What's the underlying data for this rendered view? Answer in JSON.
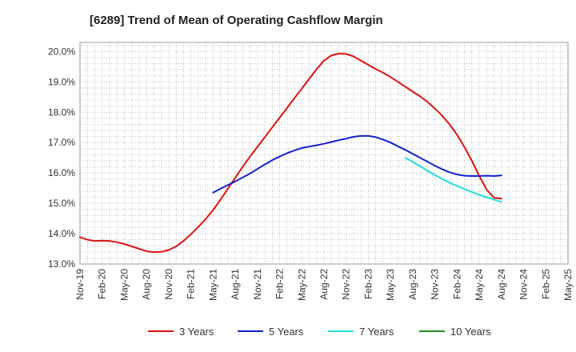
{
  "chart_data": {
    "type": "line",
    "title": "[6289]  Trend of Mean of Operating Cashflow Margin",
    "xlabel": "",
    "ylabel": "",
    "ylim": [
      13.0,
      20.3
    ],
    "y_ticks": [
      13.0,
      14.0,
      15.0,
      16.0,
      17.0,
      18.0,
      19.0,
      20.0
    ],
    "y_tick_labels": [
      "13.0%",
      "14.0%",
      "15.0%",
      "16.0%",
      "17.0%",
      "18.0%",
      "19.0%",
      "20.0%"
    ],
    "x_tick_labels": [
      "Nov-19",
      "Feb-20",
      "May-20",
      "Aug-20",
      "Nov-20",
      "Feb-21",
      "May-21",
      "Aug-21",
      "Nov-21",
      "Feb-22",
      "May-22",
      "Aug-22",
      "Nov-22",
      "Feb-23",
      "May-23",
      "Aug-23",
      "Nov-23",
      "Feb-24",
      "May-24",
      "Aug-24",
      "Nov-24",
      "Feb-25",
      "May-25"
    ],
    "grid": true,
    "legend_position": "bottom",
    "series": [
      {
        "name": "3 Years",
        "color": "#dd1111",
        "x": [
          0,
          1,
          2,
          3,
          4,
          5,
          6,
          7,
          8,
          9,
          10,
          11,
          12,
          13,
          14,
          15,
          16,
          17,
          18,
          19,
          20,
          21,
          22,
          23,
          24,
          25,
          26,
          27,
          28,
          29,
          30,
          31,
          32,
          33,
          34,
          35,
          36,
          37,
          38,
          39,
          40,
          41,
          42,
          43,
          44,
          45,
          46,
          47,
          48,
          49,
          50,
          51,
          52,
          53,
          54,
          55,
          56,
          57
        ],
        "values": [
          13.88,
          13.8,
          13.76,
          13.77,
          13.76,
          13.72,
          13.66,
          13.58,
          13.5,
          13.42,
          13.39,
          13.4,
          13.46,
          13.58,
          13.76,
          13.98,
          14.22,
          14.48,
          14.78,
          15.12,
          15.48,
          15.84,
          16.2,
          16.54,
          16.86,
          17.18,
          17.5,
          17.82,
          18.14,
          18.46,
          18.78,
          19.1,
          19.42,
          19.7,
          19.87,
          19.93,
          19.92,
          19.84,
          19.7,
          19.56,
          19.42,
          19.3,
          19.16,
          19.0,
          18.84,
          18.68,
          18.52,
          18.34,
          18.12,
          17.88,
          17.6,
          17.25,
          16.85,
          16.4,
          15.9,
          15.45,
          15.18,
          15.15
        ],
        "x_end": 57
      },
      {
        "name": "5 Years",
        "color": "#1122cc",
        "x": [
          18,
          19,
          20,
          21,
          22,
          23,
          24,
          25,
          26,
          27,
          28,
          29,
          30,
          31,
          32,
          33,
          34,
          35,
          36,
          37,
          38,
          39,
          40,
          41,
          42,
          43,
          44,
          45,
          46,
          47,
          48,
          49,
          50,
          51,
          52,
          53,
          54,
          55,
          56,
          57
        ],
        "values": [
          15.35,
          15.48,
          15.6,
          15.72,
          15.85,
          15.98,
          16.13,
          16.28,
          16.42,
          16.54,
          16.65,
          16.74,
          16.82,
          16.87,
          16.91,
          16.96,
          17.02,
          17.08,
          17.13,
          17.19,
          17.22,
          17.22,
          17.18,
          17.1,
          17.0,
          16.88,
          16.76,
          16.63,
          16.5,
          16.37,
          16.24,
          16.12,
          16.02,
          15.95,
          15.91,
          15.9,
          15.9,
          15.91,
          15.9,
          15.92
        ]
      },
      {
        "name": "7 Years",
        "color": "#22dddd",
        "x": [
          44,
          45,
          46,
          47,
          48,
          49,
          50,
          51,
          52,
          53,
          54,
          55,
          56,
          57
        ],
        "values": [
          16.5,
          16.36,
          16.22,
          16.07,
          15.93,
          15.8,
          15.68,
          15.57,
          15.47,
          15.37,
          15.28,
          15.2,
          15.12,
          15.05
        ]
      },
      {
        "name": "10 Years",
        "color": "#228822",
        "x": [],
        "values": []
      }
    ]
  }
}
